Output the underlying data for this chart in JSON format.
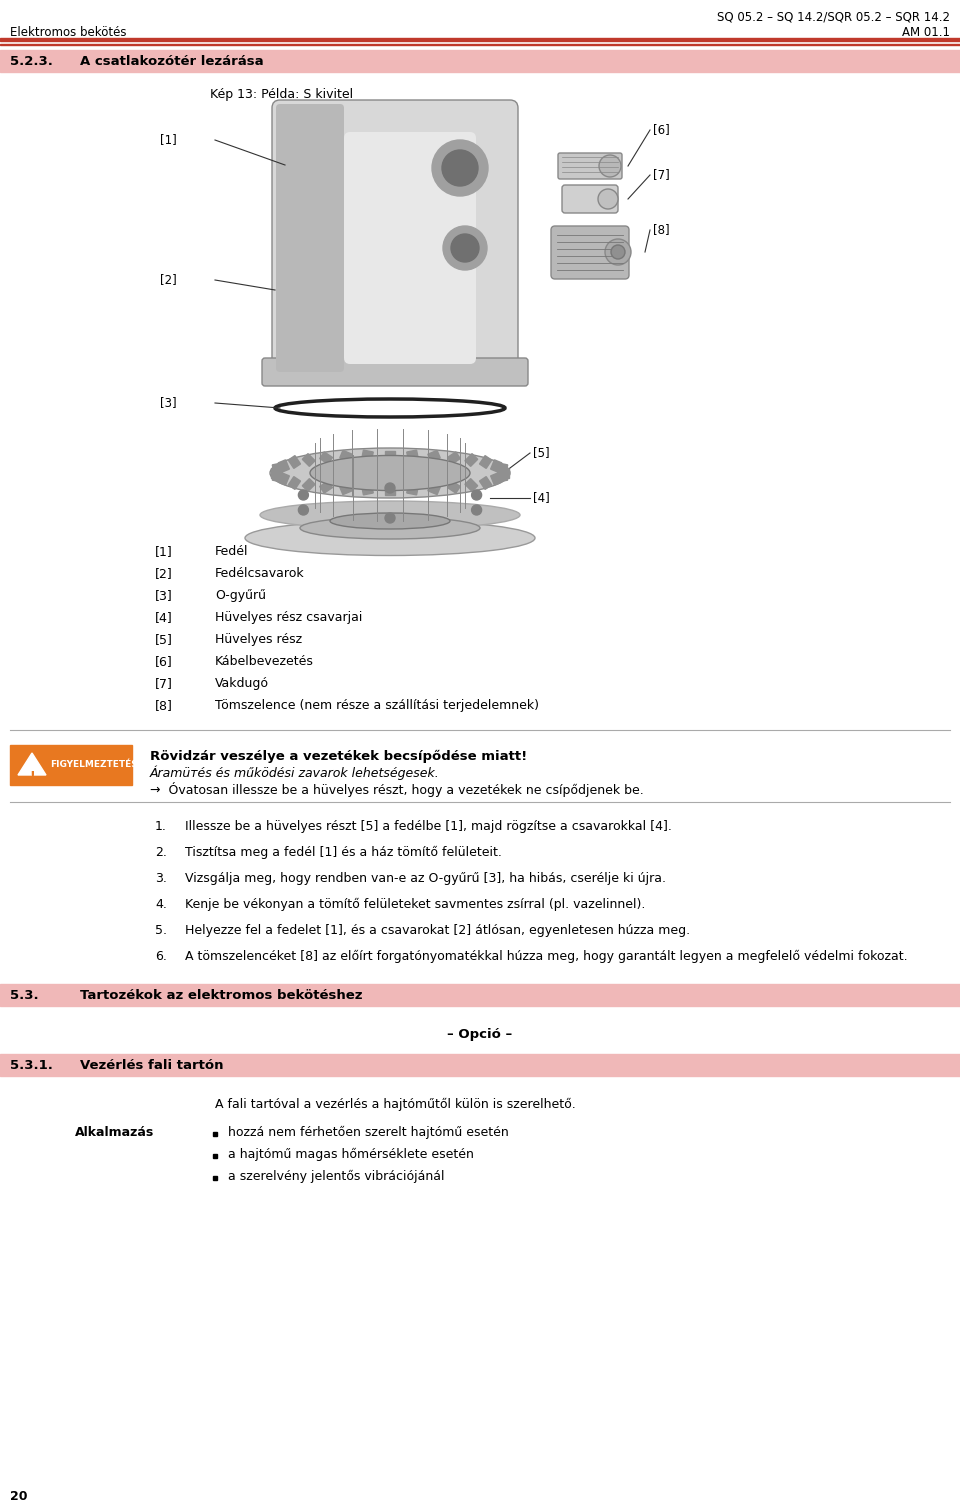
{
  "page_width": 9.6,
  "page_height": 15.05,
  "bg_color": "#ffffff",
  "header_top_text_right": "SQ 05.2 – SQ 14.2/SQR 05.2 – SQR 14.2",
  "header_bottom_left": "Elektromos bekötés",
  "header_bottom_right": "AM 01.1",
  "red_line_color": "#c0392b",
  "section_523_bg": "#f0b8b8",
  "section_523_label": "5.2.3.",
  "section_523_title": "A csatlakozótér lezárása",
  "image_caption": "Kép 13: Példa: S kivitel",
  "parts_list": [
    {
      "num": "[1]",
      "desc": "Fedél"
    },
    {
      "num": "[2]",
      "desc": "Fedélcsavarok"
    },
    {
      "num": "[3]",
      "desc": "O-gyűrű"
    },
    {
      "num": "[4]",
      "desc": "Hüvelyes rész csavarjai"
    },
    {
      "num": "[5]",
      "desc": "Hüvelyes rész"
    },
    {
      "num": "[6]",
      "desc": "Kábelbevezetés"
    },
    {
      "num": "[7]",
      "desc": "Vakdugó"
    },
    {
      "num": "[8]",
      "desc": "Tömszelence (nem része a szállítási terjedelemnek)"
    }
  ],
  "warning_bg": "#e87820",
  "warning_title": "Rövidzár veszélye a vezetékek becsípődése miatt!",
  "warning_subtitle": "Áramüтés és működési zavarok lehetségesek.",
  "warning_arrow_text": "→  Óvatosan illessze be a hüvelyes részt, hogy a vezetékek ne csípődjenek be.",
  "steps": [
    "Illessze be a hüvelyes részt [5] a fedélbe [1], majd rögzítse a csavarokkal [4].",
    "Tisztítsa meg a fedél [1] és a ház tömítő felületeit.",
    "Vizsgálja meg, hogy rendben van-e az O-gyűrű [3], ha hibás, cserélje ki újra.",
    "Kenje be vékonyan a tömítő felületeket savmentes zsírral (pl. vazelinnel).",
    "Helyezze fel a fedelet [1], és a csavarokat [2] átlósan, egyenletesen húzza meg.",
    "A tömszelencéket [8] az előírt forgatónyomatékkal húzza meg, hogy garantált legyen a megfelelő védelmi fokozat."
  ],
  "section_53_bg": "#f0b8b8",
  "section_53_label": "5.3.",
  "section_53_title": "Tartozékok az elektromos bekötéshez",
  "opcion_text": "– Opció –",
  "section_531_bg": "#f0b8b8",
  "section_531_label": "5.3.1.",
  "section_531_title": "Vezérlés fali tartón",
  "section_531_body": "A fali tartóval a vezérlés a hajtóműtől külön is szerelhető.",
  "application_label": "Alkalmazás",
  "application_bullets": [
    "hozzá nem férhetően szerelt hajtómű esetén",
    "a hajtómű magas hőmérséklete esetén",
    "a szerelvény jelentős vibrációjánál"
  ],
  "page_number": "20",
  "separator_color": "#aaaaaa"
}
